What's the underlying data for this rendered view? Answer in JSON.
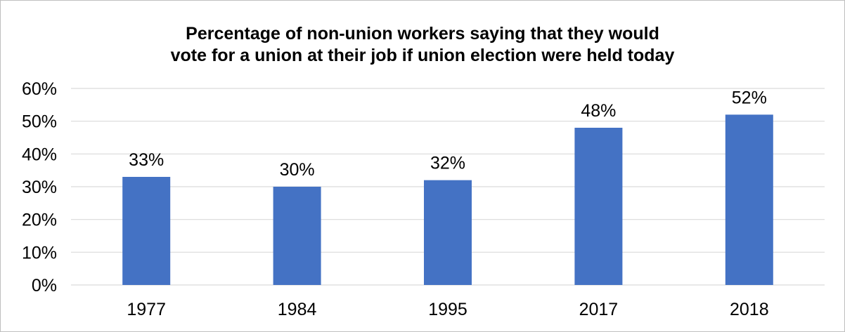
{
  "chart_data": {
    "type": "bar",
    "title": "Percentage of non-union workers saying that they would vote for a union at their job if union election were held today",
    "title_lines": [
      "Percentage of non-union workers saying that they would",
      "vote for a union at their job if union election were held today"
    ],
    "categories": [
      "1977",
      "1984",
      "1995",
      "2017",
      "2018"
    ],
    "values": [
      33,
      30,
      32,
      48,
      52
    ],
    "data_labels": [
      "33%",
      "30%",
      "32%",
      "48%",
      "52%"
    ],
    "ylim": [
      0,
      60
    ],
    "y_ticks": [
      0,
      10,
      20,
      30,
      40,
      50,
      60
    ],
    "y_tick_labels": [
      "0%",
      "10%",
      "20%",
      "30%",
      "40%",
      "50%",
      "60%"
    ],
    "xlabel": "",
    "ylabel": "",
    "grid": true,
    "legend": "none",
    "bar_color": "#4472C4",
    "grid_color": "#D9D9D9"
  }
}
